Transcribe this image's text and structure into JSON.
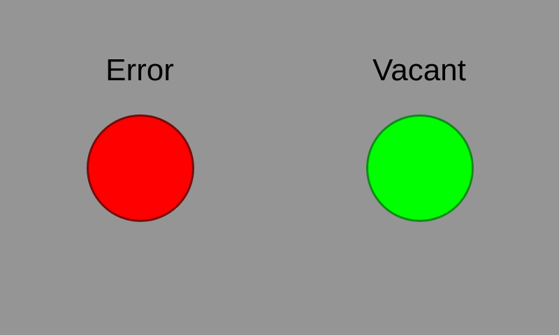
{
  "indicators": [
    {
      "label": "Error",
      "status": "error",
      "fill_color": "#ff0000",
      "border_color": "#7a0a0a"
    },
    {
      "label": "Vacant",
      "status": "vacant",
      "fill_color": "#00ff00",
      "border_color": "#12891a"
    }
  ],
  "background_color": "#959595"
}
